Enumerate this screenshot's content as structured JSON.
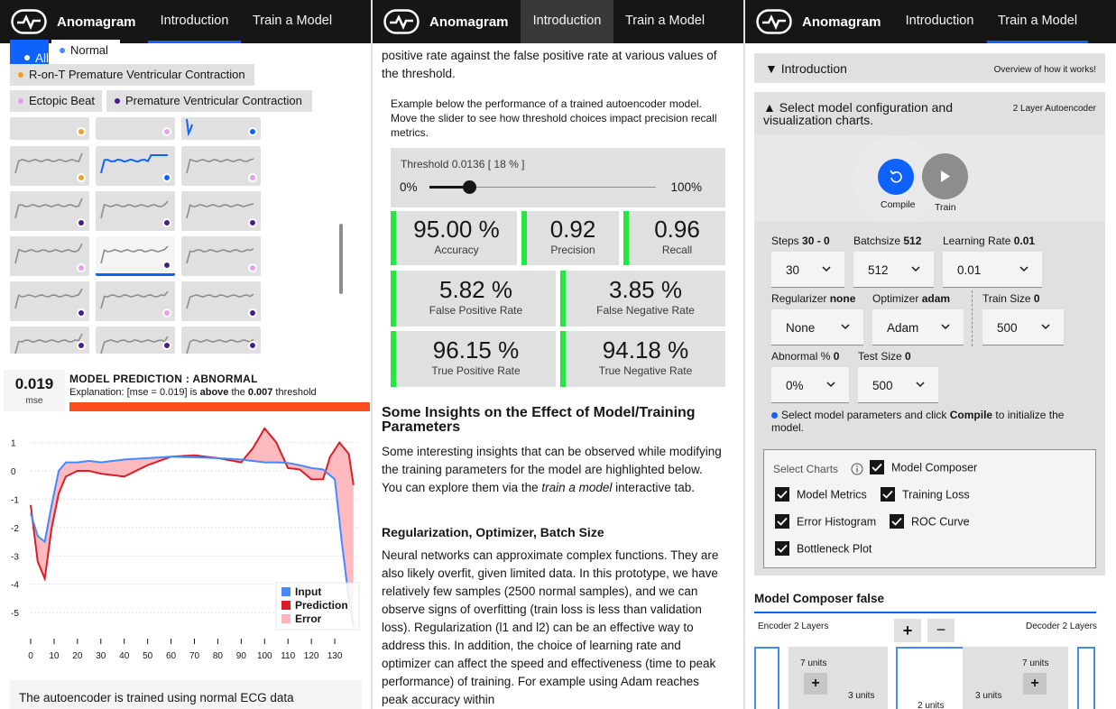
{
  "nav": {
    "brand": "Anomagram",
    "tabs": [
      "Introduction",
      "Train a Model"
    ]
  },
  "panel1": {
    "filters": [
      {
        "label": "All",
        "color": "#ffffff",
        "selected": true
      },
      {
        "label": "Normal",
        "color": "#4589ff"
      },
      {
        "label": "R-on-T Premature Ventricular Contraction",
        "color": "#f1a02b"
      },
      {
        "label": "Ectopic Beat",
        "color": "#e69ee8"
      },
      {
        "label": "Premature Ventricular Contraction",
        "color": "#491d8b"
      }
    ],
    "thumb_dot_colors": [
      "#f1a02b",
      "#e69ee8",
      "#0f62fe",
      "#f1a02b",
      "#0f62fe",
      "#e69ee8",
      "#491d8b",
      "#491d8b",
      "#491d8b",
      "#e69ee8",
      "#491d8b",
      "#e69ee8",
      "#491d8b",
      "#e69ee8",
      "#491d8b",
      "#491d8b",
      "#491d8b",
      "#491d8b"
    ],
    "prediction": {
      "mse_value": "0.019",
      "mse_label": "mse",
      "title": "MODEL PREDICTION :  ABNORMAL",
      "exp_prefix": "Explanation: [mse = 0.019] is ",
      "exp_bold1": "above",
      "exp_mid": " the ",
      "exp_bold2": "0.007",
      "exp_suffix": " threshold"
    },
    "bottom_note": "The autoencoder is trained using normal ECG data"
  },
  "chart_data": {
    "type": "line",
    "title": "",
    "xlabel": "",
    "ylabel": "",
    "xlim": [
      0,
      140
    ],
    "ylim": [
      -5.6,
      1.4
    ],
    "x_ticks": [
      0,
      10,
      20,
      30,
      40,
      50,
      60,
      70,
      80,
      90,
      100,
      110,
      120,
      130
    ],
    "y_ticks": [
      1,
      0,
      -1,
      -2,
      -3,
      -4,
      -5
    ],
    "legend": [
      "Input",
      "Prediction",
      "Error"
    ],
    "legend_position": "bottom-right",
    "grid": true,
    "colors": {
      "Input": "#4589ff",
      "Prediction": "#da1e28",
      "Error": "#ffb3b8"
    },
    "series": [
      {
        "name": "Input",
        "x": [
          0,
          3,
          6,
          9,
          12,
          15,
          20,
          25,
          30,
          40,
          50,
          60,
          70,
          80,
          90,
          100,
          105,
          110,
          115,
          120,
          125,
          130,
          133,
          136,
          138
        ],
        "y": [
          -1.5,
          -2.3,
          -2.5,
          -1.2,
          0.0,
          0.3,
          0.3,
          0.35,
          0.3,
          0.4,
          0.45,
          0.5,
          0.48,
          0.45,
          0.4,
          0.3,
          0.3,
          0.28,
          0.2,
          0.1,
          0.05,
          -0.3,
          -2.5,
          -4.5,
          -5.5
        ]
      },
      {
        "name": "Prediction",
        "x": [
          0,
          3,
          6,
          9,
          12,
          15,
          20,
          25,
          30,
          40,
          50,
          60,
          70,
          80,
          90,
          95,
          100,
          105,
          110,
          115,
          120,
          125,
          128,
          132,
          136,
          138
        ],
        "y": [
          -1.2,
          -3.2,
          -3.8,
          -2.0,
          -0.8,
          -0.2,
          0.0,
          0.0,
          -0.1,
          -0.2,
          0.2,
          0.5,
          0.55,
          0.45,
          0.3,
          0.8,
          1.5,
          1.0,
          0.1,
          0.05,
          -0.3,
          -0.3,
          0.5,
          1.0,
          0.6,
          -0.5
        ]
      }
    ]
  },
  "panel2": {
    "intro_text": "positive rate against the false positive rate at various values of the threshold.",
    "example_text": "Example below the performance of a trained autoencoder model. Move the slider to see how threshold choices impact precision recall metrics.",
    "threshold_label": "Threshold 0.0136 [ 18 % ]",
    "slider_min": "0%",
    "slider_max": "100%",
    "slider_value_fraction": 0.18,
    "metrics": [
      {
        "value": "95.00 %",
        "label": "Accuracy"
      },
      {
        "value": "0.92",
        "label": "Precision"
      },
      {
        "value": "0.96",
        "label": "Recall"
      },
      {
        "value": "5.82 %",
        "label": "False Positive Rate"
      },
      {
        "value": "3.85 %",
        "label": "False Negative Rate"
      },
      {
        "value": "96.15 %",
        "label": "True Positive Rate"
      },
      {
        "value": "94.18 %",
        "label": "True Negative Rate"
      }
    ],
    "insights_title": "Some Insights on the Effect of Model/Training Parameters",
    "insights_p1_a": "Some interesting insights that can be observed while modifying the training parameters for the model are highlighted below. You can explore them via the ",
    "insights_p1_em": "train a model",
    "insights_p1_b": " interactive tab.",
    "section_title": "Regularization, Optimizer, Batch Size",
    "section_body": "Neural networks can approximate complex functions. They are also likely overfit, given limited data. In this prototype, we have relatively few samples (2500 normal samples), and we can observe signs of overfitting (train loss is less than validation loss). Regularization (l1 and l2) can be an effective way to address this. In addition, the choice of learning rate and optimizer can affect the speed and effectiveness (time to peak performance) of training. For example using Adam reaches peak accuracy within"
  },
  "panel3": {
    "intro_acc": {
      "title": "▼ Introduction",
      "right": "Overview of how it works!"
    },
    "config_acc": {
      "title": "▲ Select model configuration and visualization charts.",
      "right": "2 Layer Autoencoder"
    },
    "compile_label": "Compile",
    "train_label": "Train",
    "fields": {
      "steps": {
        "label": "Steps",
        "bold": "30 - 0",
        "value": "30"
      },
      "batchsize": {
        "label": "Batchsize",
        "bold": "512",
        "value": "512"
      },
      "learning_rate": {
        "label": "Learning Rate",
        "bold": "0.01",
        "value": "0.01"
      },
      "regularizer": {
        "label": "Regularizer",
        "bold": "none",
        "value": "None"
      },
      "optimizer": {
        "label": "Optimizer",
        "bold": "adam",
        "value": "Adam"
      },
      "train_size": {
        "label": "Train Size",
        "bold": "0",
        "value": "500"
      },
      "abnormal": {
        "label": "Abnormal %",
        "bold": "0",
        "value": "0%"
      },
      "test_size": {
        "label": "Test Size",
        "bold": "0",
        "value": "500"
      }
    },
    "hint_a": "Select model parameters and click ",
    "hint_b": "Compile",
    "hint_c": " to initialize the model.",
    "select_charts_label": "Select Charts",
    "charts": [
      "Model Composer",
      "Model Metrics",
      "Training Loss",
      "Error Histogram",
      "ROC Curve",
      "Bottleneck Plot"
    ],
    "composer_title": "Model Composer false",
    "encoder_label": "Encoder 2 Layers",
    "decoder_label": "Decoder 2 Layers",
    "units_7": "7 units",
    "units_3": "3 units",
    "units_2": "2 units"
  }
}
